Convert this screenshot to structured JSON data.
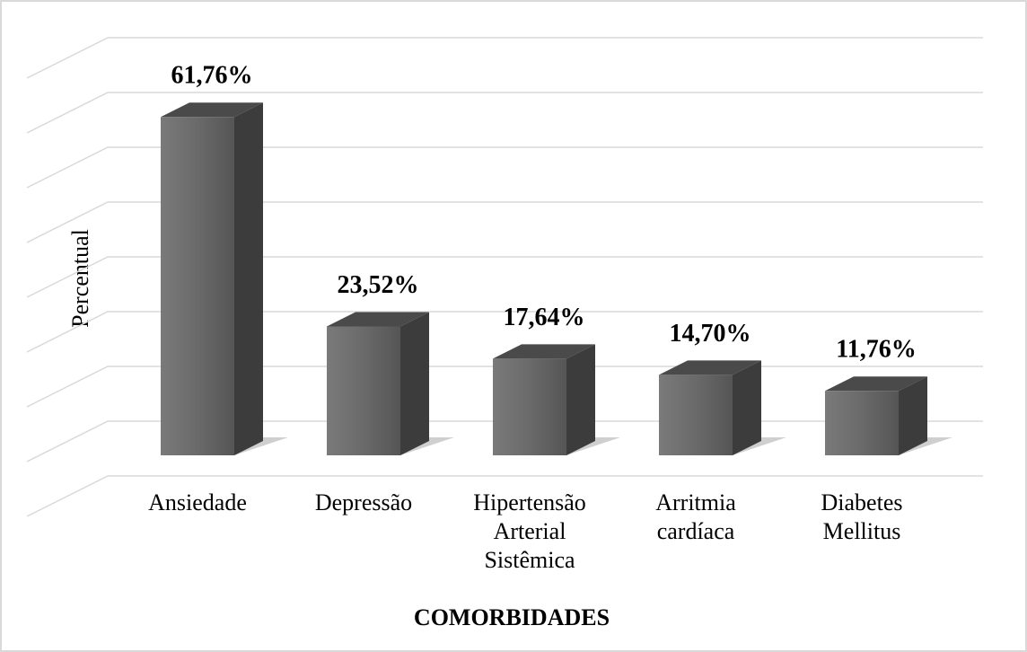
{
  "chart_data": {
    "type": "bar3d",
    "x_label": "COMORBIDADES",
    "y_label": "Percentual",
    "categories": [
      "Ansiedade",
      "Depressão",
      "Hipertensão Arterial Sistêmica",
      "Arritmia cardíaca",
      "Diabetes Mellitus"
    ],
    "values": [
      61.76,
      23.52,
      17.64,
      14.7,
      11.76
    ],
    "value_labels": [
      "61,76%",
      "23,52%",
      "17,64%",
      "14,70%",
      "11,76%"
    ],
    "color": "#5f5f5f",
    "ylim": [
      0,
      80
    ],
    "yticks": [
      0,
      10,
      20,
      30,
      40,
      50,
      60,
      70,
      80
    ],
    "grid": true
  }
}
